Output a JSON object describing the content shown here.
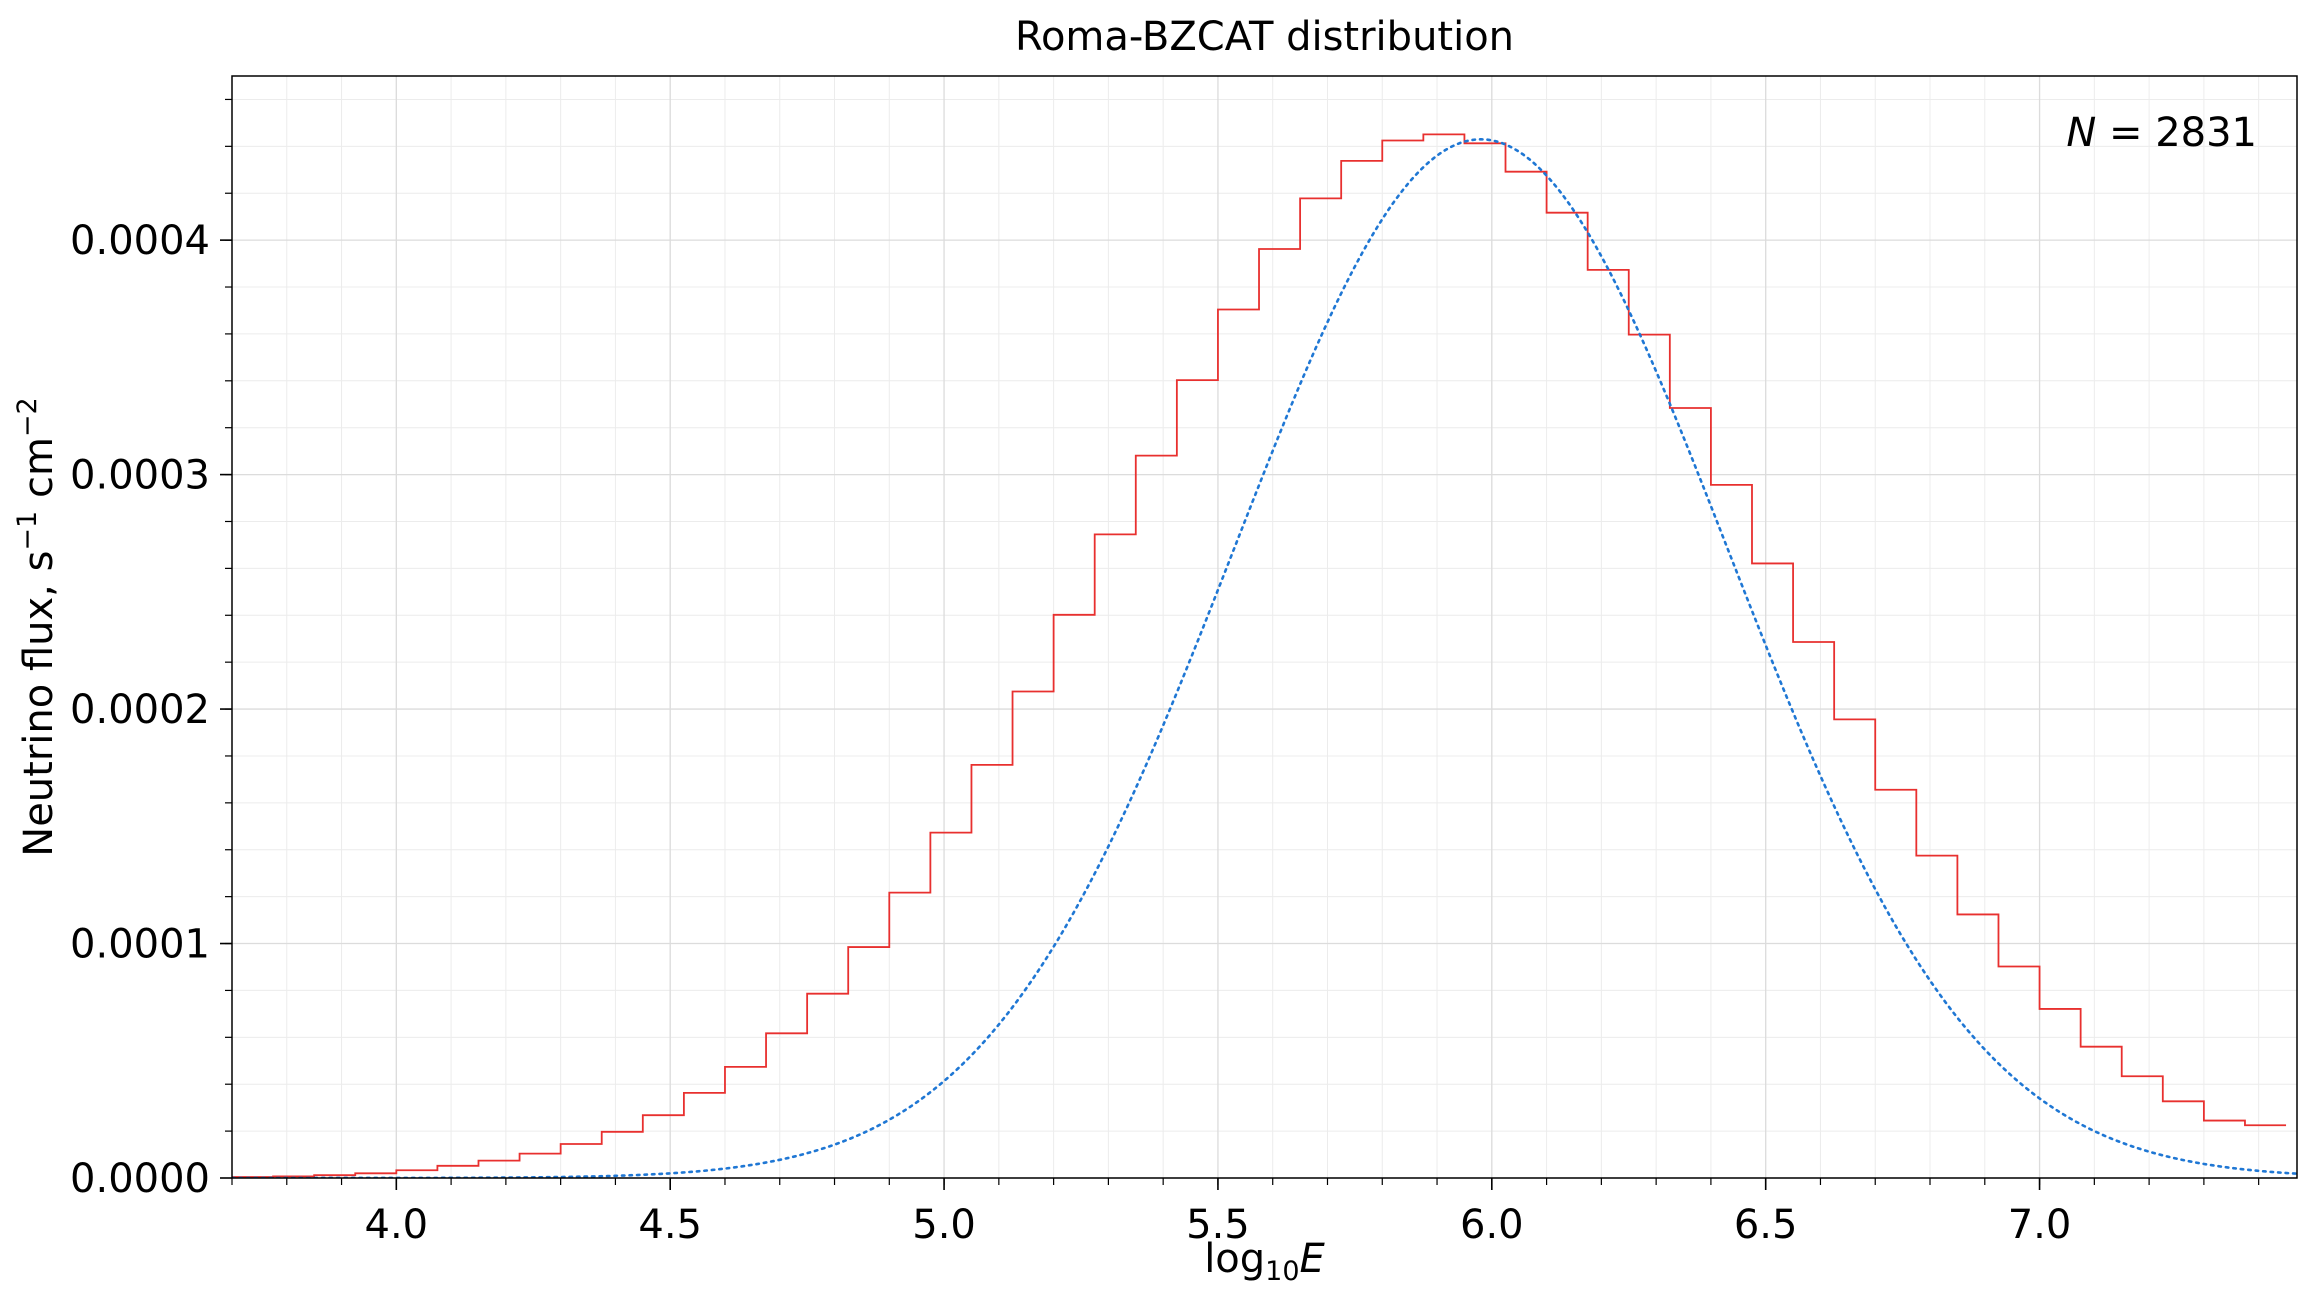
{
  "chart_data": {
    "type": "histogram",
    "title": "Roma-BZCAT distribution",
    "xlabel": "log10E",
    "ylabel": "Neutrino flux, s⁻¹ cm⁻²",
    "annotation": {
      "label": "N",
      "value": "2831"
    },
    "xlim": [
      3.7,
      7.47
    ],
    "ylim": [
      0,
      0.00047
    ],
    "x_ticks": [
      4.0,
      4.5,
      5.0,
      5.5,
      6.0,
      6.5,
      7.0
    ],
    "x_tick_labels": [
      "4.0",
      "4.5",
      "5.0",
      "5.5",
      "6.0",
      "6.5",
      "7.0"
    ],
    "y_ticks": [
      0,
      0.0001,
      0.0002,
      0.0003,
      0.0004
    ],
    "y_tick_labels": [
      "0.0000",
      "0.0001",
      "0.0002",
      "0.0003",
      "0.0004"
    ],
    "grid": true,
    "series": [
      {
        "kind": "step-histogram",
        "color": "#e8302f",
        "bin_edges": [
          3.7,
          3.775,
          3.85,
          3.925,
          4.0,
          4.075,
          4.15,
          4.225,
          4.3,
          4.375,
          4.45,
          4.525,
          4.6,
          4.675,
          4.75,
          4.825,
          4.9,
          4.975,
          5.05,
          5.125,
          5.2,
          5.275,
          5.35,
          5.425,
          5.5,
          5.575,
          5.65,
          5.725,
          5.8,
          5.875,
          5.95,
          6.025,
          6.1,
          6.175,
          6.25,
          6.325,
          6.4,
          6.475,
          6.55,
          6.625,
          6.7,
          6.775,
          6.85,
          6.925,
          7.0,
          7.075,
          7.15,
          7.225,
          7.3,
          7.375,
          7.45
        ],
        "values": [
          4e-07,
          7e-07,
          1.2e-06,
          2e-06,
          3.3e-06,
          5.2e-06,
          7.4e-06,
          1.04e-05,
          1.45e-05,
          1.97e-05,
          2.68e-05,
          3.63e-05,
          4.74e-05,
          6.17e-05,
          7.86e-05,
          9.85e-05,
          0.0001217,
          0.0001473,
          0.0001762,
          0.0002075,
          0.0002402,
          0.0002745,
          0.0003081,
          0.0003403,
          0.0003704,
          0.0003962,
          0.0004178,
          0.0004338,
          0.0004425,
          0.0004451,
          0.0004413,
          0.0004292,
          0.0004117,
          0.0003873,
          0.0003597,
          0.0003284,
          0.0002956,
          0.0002621,
          0.0002286,
          0.0001956,
          0.0001656,
          0.0001375,
          0.0001124,
          9.02e-05,
          7.21e-05,
          5.6e-05,
          4.34e-05,
          3.27e-05,
          2.45e-05,
          2.25e-05
        ]
      },
      {
        "kind": "fit-curve",
        "style": "dotted",
        "color": "#1f77d4",
        "mean": 5.98,
        "sigma": 0.45,
        "peak": 0.000443
      }
    ]
  }
}
